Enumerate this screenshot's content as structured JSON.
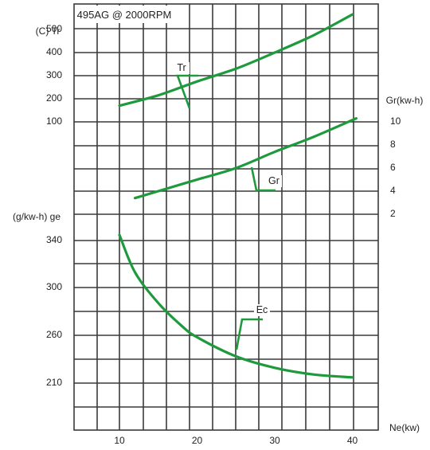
{
  "chart_data": {
    "type": "line",
    "title": "495AG @ 2000RPM",
    "xlabel": "Ne(kw)",
    "ylabel_torque": "(C) Tr",
    "ylabel_power": "Gr(kw-h)",
    "ylabel_consumption": "(g/kw-h) ge",
    "grid": true,
    "line_color": "#1e9a3c",
    "x_ticks": [
      10,
      20,
      30,
      40
    ],
    "torque_ticks": [
      100,
      200,
      300,
      400,
      500
    ],
    "power_ticks": [
      2,
      4,
      6,
      8,
      10
    ],
    "consumption_ticks": [
      210,
      260,
      300,
      340
    ],
    "series": [
      {
        "name": "Tr",
        "axis": "torque",
        "x": [
          10,
          15,
          20,
          25,
          30,
          35,
          40
        ],
        "y": [
          170,
          215,
          275,
          330,
          400,
          475,
          565
        ]
      },
      {
        "name": "Gr",
        "axis": "power",
        "x": [
          12,
          15,
          20,
          25,
          30,
          35,
          40.5
        ],
        "y": [
          3.4,
          4.0,
          5.0,
          6.0,
          7.4,
          8.7,
          10.3
        ]
      },
      {
        "name": "Ec",
        "axis": "consumption",
        "x": [
          10,
          12,
          15,
          18,
          20,
          25,
          30,
          35,
          40
        ],
        "y": [
          345,
          313,
          287,
          268,
          258,
          238,
          226,
          219,
          216
        ]
      }
    ]
  }
}
